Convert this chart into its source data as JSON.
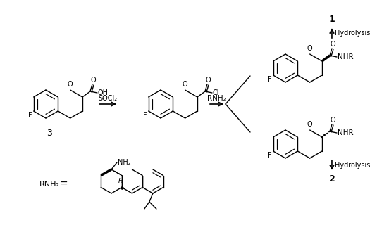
{
  "background_color": "#ffffff",
  "fig_width": 5.52,
  "fig_height": 3.2,
  "dpi": 100,
  "line_color": "#000000",
  "text_color": "#000000",
  "annotations": {
    "label_3": "3",
    "label_1": "1",
    "label_2": "2",
    "SOCl2": "SOCl₂",
    "RNH2_arrow": "RNH₂",
    "hydrolysis_up": "Hydrolysis",
    "hydrolysis_down": "Hydrolysis",
    "RNH2_eq": "RNH₂",
    "equals": "=",
    "NH2": "NH₂",
    "H": "H",
    "NHR_1": "NHR",
    "NHR_2": "NHR",
    "F1": "F",
    "F2": "F",
    "F3": "F",
    "F4": "F",
    "O1": "O",
    "O2": "O",
    "O3": "O",
    "O4": "O",
    "OH": "OH",
    "Cl": "Cl"
  }
}
